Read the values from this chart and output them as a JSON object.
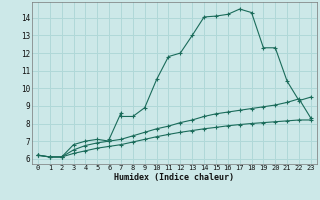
{
  "xlabel": "Humidex (Indice chaleur)",
  "background_color": "#cce8e8",
  "grid_color": "#b0d8d8",
  "line_color": "#1a6b5a",
  "xlim": [
    -0.5,
    23.5
  ],
  "ylim": [
    5.7,
    14.9
  ],
  "xticks": [
    0,
    1,
    2,
    3,
    4,
    5,
    6,
    7,
    8,
    9,
    10,
    11,
    12,
    13,
    14,
    15,
    16,
    17,
    18,
    19,
    20,
    21,
    22,
    23
  ],
  "yticks": [
    6,
    7,
    8,
    9,
    10,
    11,
    12,
    13,
    14
  ],
  "line1_x": [
    0,
    1,
    2,
    3,
    4,
    5,
    6,
    6,
    7,
    7,
    8,
    9,
    10,
    11,
    12,
    13,
    14,
    15,
    16,
    17,
    18,
    19,
    20,
    21,
    22,
    23
  ],
  "line1_y": [
    6.2,
    6.1,
    6.1,
    6.8,
    7.0,
    7.1,
    7.0,
    7.1,
    8.6,
    8.4,
    8.4,
    8.9,
    10.5,
    11.8,
    12.0,
    13.0,
    14.05,
    14.1,
    14.2,
    14.5,
    14.3,
    12.3,
    12.3,
    10.4,
    9.3,
    9.5
  ],
  "line2_x": [
    0,
    1,
    2,
    3,
    4,
    5,
    6,
    7,
    8,
    9,
    10,
    11,
    12,
    13,
    14,
    15,
    16,
    17,
    18,
    19,
    20,
    21,
    22,
    23
  ],
  "line2_y": [
    6.2,
    6.1,
    6.1,
    6.5,
    6.75,
    6.9,
    7.0,
    7.1,
    7.3,
    7.5,
    7.7,
    7.85,
    8.05,
    8.2,
    8.4,
    8.55,
    8.65,
    8.75,
    8.85,
    8.95,
    9.05,
    9.2,
    9.4,
    8.3
  ],
  "line3_x": [
    0,
    1,
    2,
    3,
    4,
    5,
    6,
    7,
    8,
    9,
    10,
    11,
    12,
    13,
    14,
    15,
    16,
    17,
    18,
    19,
    20,
    21,
    22,
    23
  ],
  "line3_y": [
    6.2,
    6.1,
    6.1,
    6.3,
    6.45,
    6.6,
    6.7,
    6.8,
    6.95,
    7.1,
    7.25,
    7.38,
    7.5,
    7.6,
    7.7,
    7.78,
    7.87,
    7.94,
    8.0,
    8.05,
    8.1,
    8.15,
    8.2,
    8.2
  ]
}
